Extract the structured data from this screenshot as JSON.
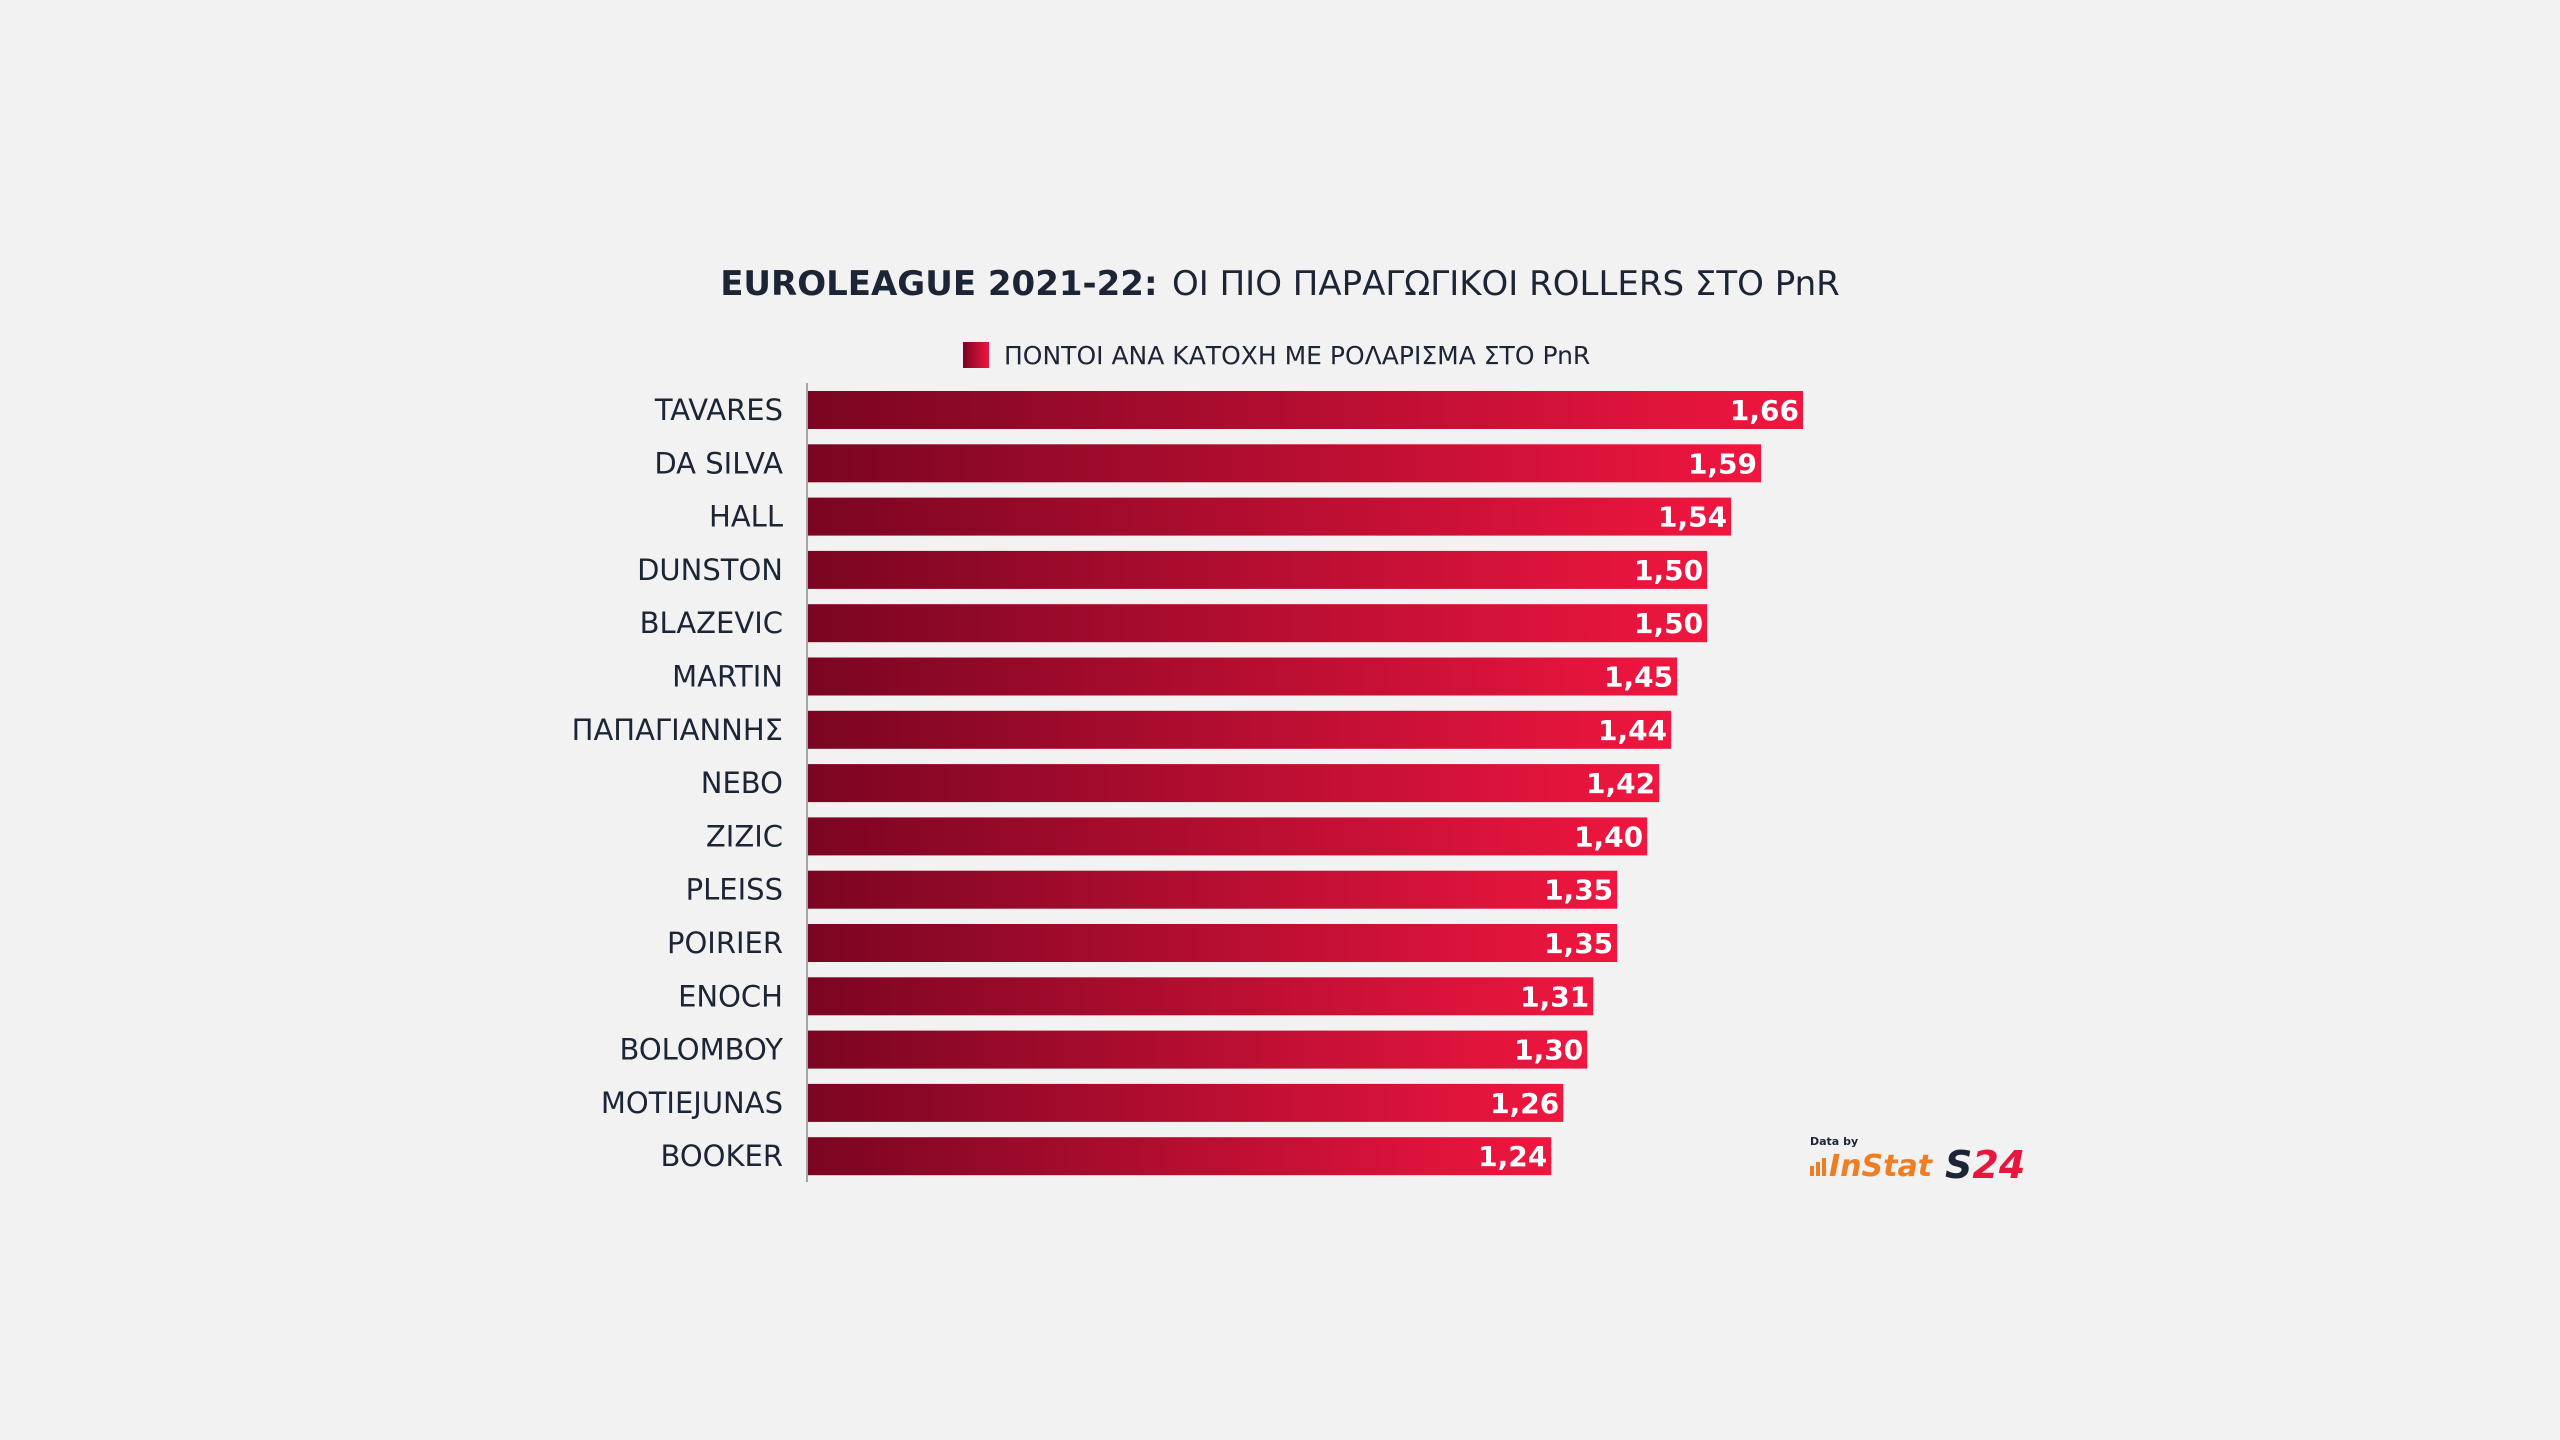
{
  "chart_data": {
    "type": "bar",
    "orientation": "horizontal",
    "title_bold": "EUROLEAGUE 2021-22:",
    "title_rest": "ΟΙ ΠΙΟ ΠΑΡΑΓΩΓΙΚΟΙ ROLLERS ΣΤΟ PnR",
    "legend": "ΠΟΝΤΟΙ ΑΝΑ ΚΑΤΟΧΗ ΜΕ ΡΟΛΑΡΙΣΜΑ ΣΤΟ PnR",
    "legend_position": "top",
    "categories": [
      "TAVARES",
      "DA SILVA",
      "HALL",
      "DUNSTON",
      "BLAZEVIC",
      "MARTIN",
      "ΠΑΠΑΓΙΑΝΝΗΣ",
      "NEBO",
      "ZIZIC",
      "PLEISS",
      "POIRIER",
      "ENOCH",
      "BOLOMBOY",
      "MOTIEJUNAS",
      "BOOKER"
    ],
    "values": [
      1.66,
      1.59,
      1.54,
      1.5,
      1.5,
      1.45,
      1.44,
      1.42,
      1.4,
      1.35,
      1.35,
      1.31,
      1.3,
      1.26,
      1.24
    ],
    "value_labels": [
      "1,66",
      "1,59",
      "1,54",
      "1,50",
      "1,50",
      "1,45",
      "1,44",
      "1,42",
      "1,40",
      "1,35",
      "1,35",
      "1,31",
      "1,30",
      "1,26",
      "1,24"
    ],
    "xlim": [
      0,
      1.66
    ],
    "grid": false,
    "bar_color_start": "#7a0522",
    "bar_color_end": "#f0163f"
  },
  "credits": {
    "data_by": "Data by",
    "provider": "InStat",
    "publisher": "S24"
  },
  "colors": {
    "background": "#f2f2f2",
    "text": "#1b2535",
    "instat_orange": "#ef7d22",
    "s24_red": "#e8163c"
  }
}
